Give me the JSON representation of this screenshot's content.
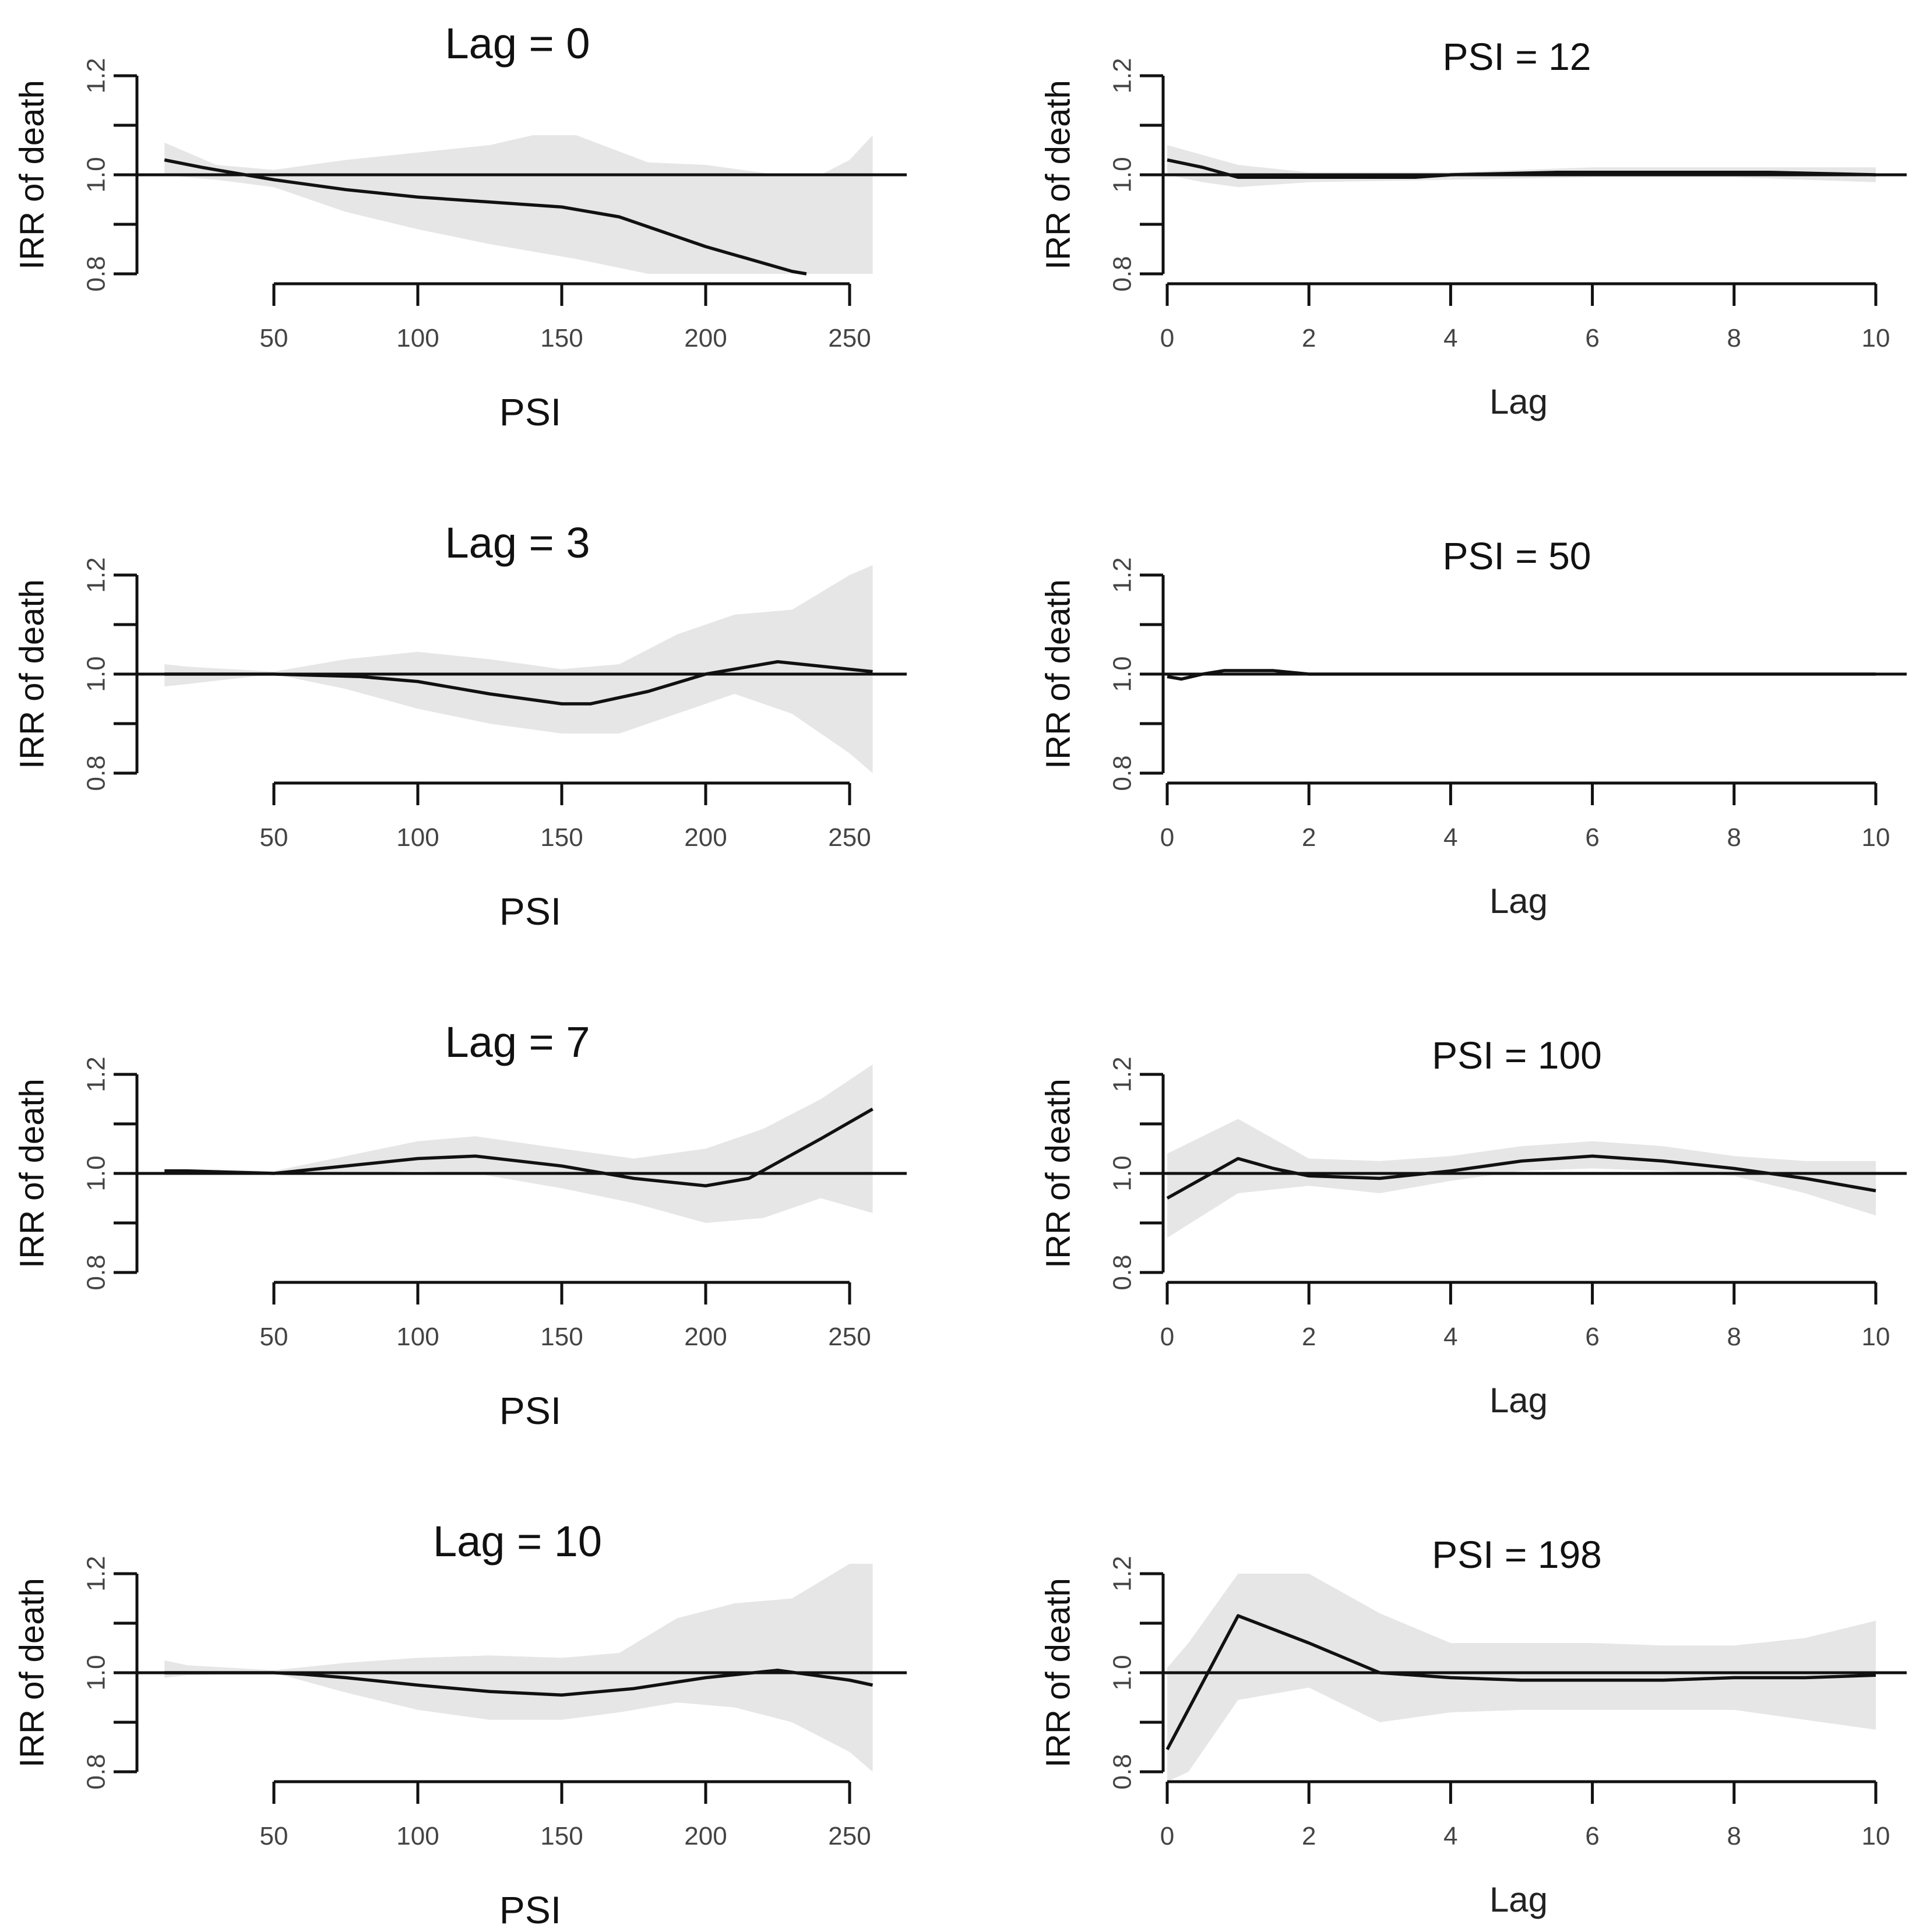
{
  "chart_data": [
    {
      "type": "line",
      "title": "Lag = 0",
      "xlabel": "PSI",
      "ylabel": "IRR of death",
      "xlim": [
        0,
        262
      ],
      "ylim": [
        0.8,
        1.2
      ],
      "xticks": [
        "50",
        "100",
        "150",
        "200",
        "250"
      ],
      "yticks": [
        "0.8",
        "1.0",
        "1.2"
      ],
      "reference": 1.0,
      "x": [
        12,
        25,
        50,
        75,
        100,
        125,
        150,
        170,
        200,
        230,
        235
      ],
      "y": [
        1.03,
        1.015,
        0.99,
        0.97,
        0.955,
        0.945,
        0.935,
        0.915,
        0.855,
        0.805,
        0.8
      ],
      "band_x": [
        12,
        20,
        30,
        50,
        75,
        100,
        125,
        140,
        155,
        180,
        200,
        225,
        240,
        250,
        258
      ],
      "band_lower": [
        1.0,
        0.995,
        0.99,
        0.975,
        0.925,
        0.89,
        0.86,
        0.845,
        0.83,
        0.8,
        0.8,
        0.8,
        0.8,
        0.8,
        0.8
      ],
      "band_upper": [
        1.065,
        1.045,
        1.02,
        1.01,
        1.03,
        1.045,
        1.06,
        1.08,
        1.08,
        1.025,
        1.02,
        1.0,
        1.0,
        1.03,
        1.08
      ]
    },
    {
      "type": "line",
      "title": "PSI = 12",
      "xlabel": "Lag",
      "ylabel": "IRR of death",
      "xlim": [
        0,
        10
      ],
      "ylim": [
        0.8,
        1.2
      ],
      "xticks": [
        "0",
        "2",
        "4",
        "6",
        "8",
        "10"
      ],
      "yticks": [
        "0.8",
        "1.0",
        "1.2"
      ],
      "reference": 1.0,
      "x": [
        0,
        0.5,
        1,
        2,
        3.5,
        4,
        5.5,
        8.5,
        10
      ],
      "y": [
        1.03,
        1.015,
        0.995,
        0.995,
        0.995,
        1.0,
        1.005,
        1.005,
        1.0
      ],
      "band_x": [
        0,
        0.5,
        1,
        2,
        4,
        6,
        8,
        10
      ],
      "band_lower": [
        1.0,
        0.985,
        0.975,
        0.985,
        0.99,
        0.995,
        0.995,
        0.985
      ],
      "band_upper": [
        1.06,
        1.04,
        1.02,
        1.005,
        1.005,
        1.015,
        1.015,
        1.015
      ]
    },
    {
      "type": "line",
      "title": "Lag = 3",
      "xlabel": "PSI",
      "ylabel": "IRR of death",
      "xlim": [
        0,
        262
      ],
      "ylim": [
        0.8,
        1.2
      ],
      "xticks": [
        "50",
        "100",
        "150",
        "200",
        "250"
      ],
      "yticks": [
        "0.8",
        "1.0",
        "1.2"
      ],
      "reference": 1.0,
      "x": [
        12,
        50,
        80,
        100,
        125,
        150,
        160,
        180,
        200,
        225,
        258
      ],
      "y": [
        1.0,
        1.0,
        0.995,
        0.985,
        0.96,
        0.94,
        0.94,
        0.965,
        1.0,
        1.025,
        1.005
      ],
      "band_x": [
        12,
        20,
        50,
        75,
        100,
        125,
        150,
        170,
        190,
        210,
        230,
        250,
        258
      ],
      "band_lower": [
        0.975,
        0.98,
        1.0,
        0.97,
        0.93,
        0.9,
        0.88,
        0.88,
        0.92,
        0.96,
        0.92,
        0.84,
        0.8
      ],
      "band_upper": [
        1.02,
        1.015,
        1.005,
        1.03,
        1.045,
        1.03,
        1.01,
        1.02,
        1.08,
        1.12,
        1.13,
        1.2,
        1.22
      ]
    },
    {
      "type": "line",
      "title": "PSI = 50",
      "xlabel": "Lag",
      "ylabel": "IRR of death",
      "xlim": [
        0,
        10
      ],
      "ylim": [
        0.8,
        1.2
      ],
      "xticks": [
        "0",
        "2",
        "4",
        "6",
        "8",
        "10"
      ],
      "yticks": [
        "0.8",
        "1.0",
        "1.2"
      ],
      "reference": 1.0,
      "x": [
        0,
        0.2,
        0.5,
        0.8,
        1.5,
        2,
        10
      ],
      "y": [
        0.995,
        0.99,
        1.0,
        1.007,
        1.007,
        1.0,
        1.0
      ],
      "band_x": [
        0,
        10
      ],
      "band_lower": [
        1.0,
        1.0
      ],
      "band_upper": [
        1.0,
        1.0
      ]
    },
    {
      "type": "line",
      "title": "Lag = 7",
      "xlabel": "PSI",
      "ylabel": "IRR of death",
      "xlim": [
        0,
        262
      ],
      "ylim": [
        0.8,
        1.2
      ],
      "xticks": [
        "50",
        "100",
        "150",
        "200",
        "250"
      ],
      "yticks": [
        "0.8",
        "1.0",
        "1.2"
      ],
      "reference": 1.0,
      "x": [
        12,
        20,
        50,
        75,
        100,
        120,
        150,
        175,
        200,
        215,
        240,
        258
      ],
      "y": [
        1.005,
        1.005,
        1.0,
        1.015,
        1.03,
        1.035,
        1.015,
        0.99,
        0.975,
        0.99,
        1.07,
        1.13
      ],
      "band_x": [
        12,
        50,
        75,
        100,
        120,
        150,
        175,
        200,
        220,
        240,
        258
      ],
      "band_lower": [
        1.0,
        1.0,
        1.0,
        1.005,
        1.0,
        0.97,
        0.94,
        0.9,
        0.91,
        0.95,
        0.92
      ],
      "band_upper": [
        1.01,
        1.005,
        1.035,
        1.065,
        1.075,
        1.05,
        1.03,
        1.05,
        1.09,
        1.15,
        1.22
      ]
    },
    {
      "type": "line",
      "title": "PSI = 100",
      "xlabel": "Lag",
      "ylabel": "IRR of death",
      "xlim": [
        0,
        10
      ],
      "ylim": [
        0.8,
        1.2
      ],
      "xticks": [
        "0",
        "2",
        "4",
        "6",
        "8",
        "10"
      ],
      "yticks": [
        "0.8",
        "1.0",
        "1.2"
      ],
      "reference": 1.0,
      "x": [
        0,
        1,
        1.5,
        2,
        3,
        4,
        5,
        6,
        7,
        8,
        9,
        10
      ],
      "y": [
        0.95,
        1.03,
        1.01,
        0.995,
        0.99,
        1.005,
        1.025,
        1.035,
        1.025,
        1.01,
        0.99,
        0.965
      ],
      "band_x": [
        0,
        1,
        2,
        3,
        4,
        5,
        6,
        7,
        8,
        9,
        10
      ],
      "band_lower": [
        0.87,
        0.96,
        0.975,
        0.96,
        0.985,
        1.005,
        1.01,
        1.005,
        0.995,
        0.96,
        0.915
      ],
      "band_upper": [
        1.04,
        1.11,
        1.03,
        1.025,
        1.035,
        1.055,
        1.065,
        1.055,
        1.035,
        1.025,
        1.025
      ]
    },
    {
      "type": "line",
      "title": "Lag = 10",
      "xlabel": "PSI",
      "ylabel": "IRR of death",
      "xlim": [
        0,
        262
      ],
      "ylim": [
        0.8,
        1.2
      ],
      "xticks": [
        "50",
        "100",
        "150",
        "200",
        "250"
      ],
      "yticks": [
        "0.8",
        "1.0",
        "1.2"
      ],
      "reference": 1.0,
      "x": [
        12,
        50,
        60,
        75,
        100,
        125,
        150,
        175,
        200,
        225,
        250,
        258
      ],
      "y": [
        1.0,
        1.0,
        0.997,
        0.99,
        0.975,
        0.962,
        0.955,
        0.968,
        0.99,
        1.005,
        0.985,
        0.975
      ],
      "band_x": [
        12,
        20,
        50,
        75,
        100,
        125,
        150,
        170,
        190,
        210,
        230,
        250,
        258
      ],
      "band_lower": [
        0.99,
        0.995,
        1.0,
        0.96,
        0.925,
        0.905,
        0.905,
        0.92,
        0.94,
        0.93,
        0.9,
        0.84,
        0.8
      ],
      "band_upper": [
        1.025,
        1.015,
        1.005,
        1.02,
        1.03,
        1.035,
        1.03,
        1.04,
        1.11,
        1.14,
        1.15,
        1.22,
        1.22
      ]
    },
    {
      "type": "line",
      "title": "PSI = 198",
      "xlabel": "Lag",
      "ylabel": "IRR of death",
      "xlim": [
        0,
        10
      ],
      "ylim": [
        0.8,
        1.2
      ],
      "xticks": [
        "0",
        "2",
        "4",
        "6",
        "8",
        "10"
      ],
      "yticks": [
        "0.8",
        "1.0",
        "1.2"
      ],
      "reference": 1.0,
      "x": [
        0,
        1,
        2,
        3,
        4,
        5,
        6,
        7,
        8,
        9,
        10
      ],
      "y": [
        0.845,
        1.115,
        1.06,
        1.0,
        0.99,
        0.985,
        0.985,
        0.985,
        0.99,
        0.99,
        0.995
      ],
      "band_x": [
        0,
        0.3,
        1,
        2,
        3,
        4,
        5,
        6,
        7,
        8,
        9,
        10
      ],
      "band_lower": [
        0.78,
        0.8,
        0.945,
        0.97,
        0.9,
        0.92,
        0.925,
        0.925,
        0.925,
        0.925,
        0.905,
        0.885
      ],
      "band_upper": [
        1.01,
        1.06,
        1.2,
        1.2,
        1.12,
        1.06,
        1.06,
        1.06,
        1.055,
        1.055,
        1.07,
        1.105
      ]
    }
  ]
}
